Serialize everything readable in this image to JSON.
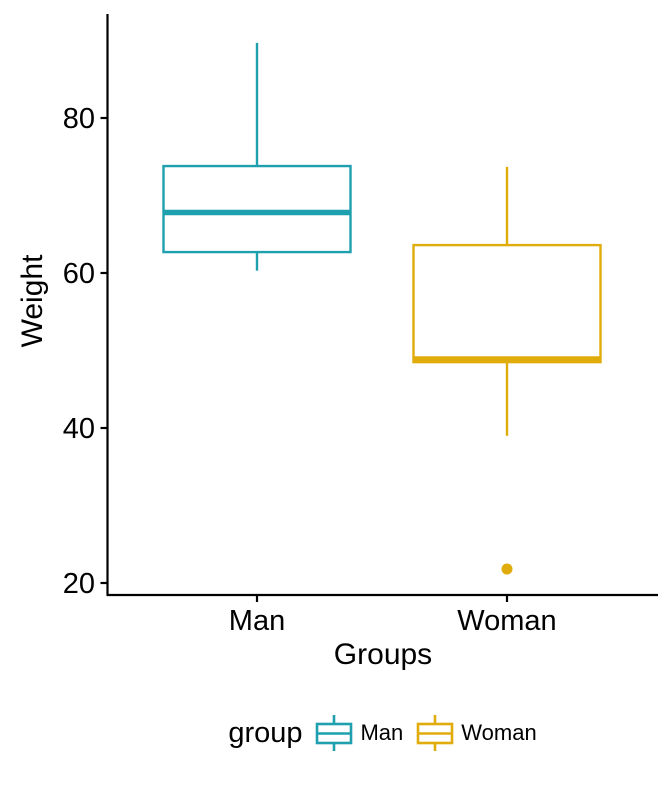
{
  "chart_data": {
    "type": "boxplot",
    "title": "",
    "xlabel": "Groups",
    "ylabel": "Weight",
    "ylim": [
      20,
      92
    ],
    "yticks": [
      20,
      40,
      60,
      80
    ],
    "categories": [
      "Man",
      "Woman"
    ],
    "series": [
      {
        "name": "Man",
        "color": "#1EA0AE",
        "min": 60.3,
        "q1": 62.7,
        "median": 67.8,
        "q3": 73.8,
        "max": 89.7,
        "outliers": []
      },
      {
        "name": "Woman",
        "color": "#E0AC0B",
        "min": 39.0,
        "q1": 48.5,
        "median": 48.9,
        "q3": 63.6,
        "max": 73.7,
        "outliers": [
          21.8
        ]
      }
    ],
    "legend": {
      "title": "group",
      "position": "bottom",
      "entries": [
        "Man",
        "Woman"
      ]
    },
    "axis_color": "#000000",
    "text_color": "#000000",
    "box_fill": "#ffffff",
    "background": "#ffffff",
    "grid": false
  }
}
